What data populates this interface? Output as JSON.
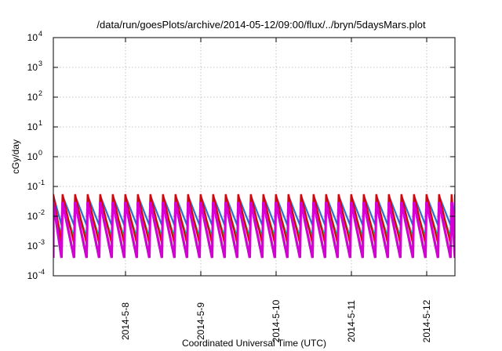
{
  "chart_data": {
    "type": "line",
    "title": "/data/run/goesPlots/archive/2014-05-12/09:00/flux/../bryn/5daysMars.plot",
    "xlabel": "Coordinated Universal Time (UTC)",
    "ylabel": "cGy/day",
    "yscale": "log",
    "ylim": [
      0.0001,
      10000
    ],
    "y_ticks": [
      {
        "base": "10",
        "exp": "-4",
        "value": 0.0001
      },
      {
        "base": "10",
        "exp": "-3",
        "value": 0.001
      },
      {
        "base": "10",
        "exp": "-2",
        "value": 0.01
      },
      {
        "base": "10",
        "exp": "-1",
        "value": 0.1
      },
      {
        "base": "10",
        "exp": "0",
        "value": 1
      },
      {
        "base": "10",
        "exp": "1",
        "value": 10
      },
      {
        "base": "10",
        "exp": "2",
        "value": 100
      },
      {
        "base": "10",
        "exp": "3",
        "value": 1000
      },
      {
        "base": "10",
        "exp": "4",
        "value": 10000
      }
    ],
    "xlim": [
      "2014-05-07 01:00",
      "2014-05-12 09:00"
    ],
    "x_ticks": [
      {
        "label": "2014-5-8",
        "value": "2014-05-08"
      },
      {
        "label": "2014-5-9",
        "value": "2014-05-09"
      },
      {
        "label": "2014-5-10",
        "value": "2014-05-10"
      },
      {
        "label": "2014-5-11",
        "value": "2014-05-11"
      },
      {
        "label": "2014-5-12",
        "value": "2014-05-12"
      }
    ],
    "grid": true,
    "sawtooth_period_hours": 4,
    "series": [
      {
        "color": "#e00000",
        "peak": 0.055,
        "trough": 0.0012
      },
      {
        "color": "#d400d4",
        "peak": 0.03,
        "trough": 0.0004
      },
      {
        "color": "#2a6fd8",
        "peak": 0.05,
        "trough": 0.005
      },
      {
        "color": "#00b8c8",
        "peak": 0.03,
        "trough": 0.002
      },
      {
        "color": "#24c24a",
        "peak": 0.022,
        "trough": 0.0018
      }
    ]
  }
}
